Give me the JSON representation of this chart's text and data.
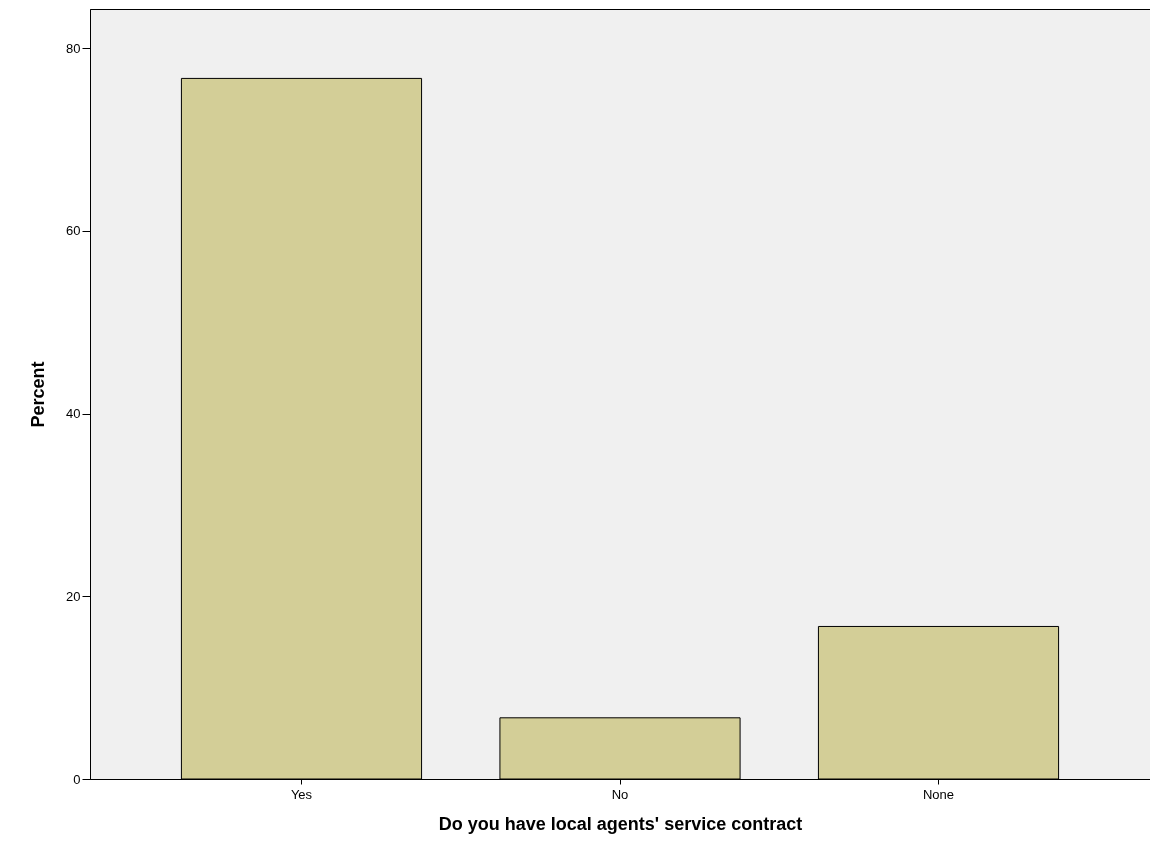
{
  "chart_data": {
    "type": "bar",
    "xlabel": "Do you have local agents' service contract",
    "ylabel": "Percent",
    "categories": [
      "Yes",
      "No",
      "None"
    ],
    "values": [
      76.7,
      6.7,
      16.7
    ],
    "color": "#d3ce97",
    "ylim": [
      0,
      84.3
    ],
    "yticks": [
      0,
      20,
      40,
      60,
      80
    ],
    "grid": false
  }
}
